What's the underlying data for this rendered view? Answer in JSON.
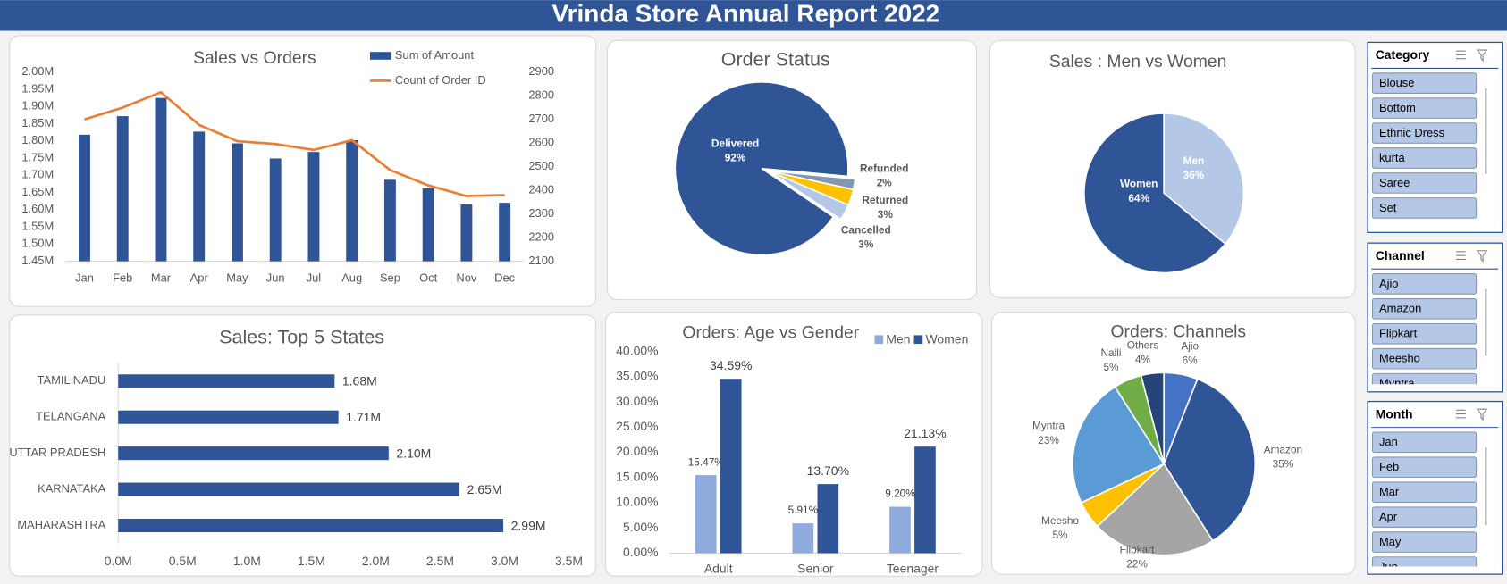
{
  "header": {
    "title": "Vrinda Store Annual Report 2022"
  },
  "chart_data": [
    {
      "type": "combo",
      "title": "Sales vs Orders",
      "categories": [
        "Jan",
        "Feb",
        "Mar",
        "Apr",
        "May",
        "Jun",
        "Jul",
        "Aug",
        "Sep",
        "Oct",
        "Nov",
        "Dec"
      ],
      "series": [
        {
          "name": "Sum of Amount",
          "color": "#2f5597",
          "type": "bar",
          "values": [
            1818000,
            1872000,
            1925000,
            1827000,
            1793000,
            1749000,
            1768000,
            1802000,
            1687000,
            1662000,
            1615000,
            1620000
          ]
        },
        {
          "name": "Count of Order ID",
          "color": "#ed7d31",
          "type": "line",
          "axis": "y2",
          "values": [
            2700,
            2750,
            2815,
            2677,
            2608,
            2596,
            2571,
            2612,
            2486,
            2421,
            2376,
            2380
          ]
        }
      ],
      "ylim": [
        1450000,
        2000000
      ],
      "yticks": [
        {
          "value": 1450000,
          "label": "1.45M"
        },
        {
          "value": 1500000,
          "label": "1.50M"
        },
        {
          "value": 1550000,
          "label": "1.55M"
        },
        {
          "value": 1600000,
          "label": "1.60M"
        },
        {
          "value": 1650000,
          "label": "1.65M"
        },
        {
          "value": 1700000,
          "label": "1.70M"
        },
        {
          "value": 1750000,
          "label": "1.75M"
        },
        {
          "value": 1800000,
          "label": "1.80M"
        },
        {
          "value": 1850000,
          "label": "1.85M"
        },
        {
          "value": 1900000,
          "label": "1.90M"
        },
        {
          "value": 1950000,
          "label": "1.95M"
        },
        {
          "value": 2000000,
          "label": "2.00M"
        }
      ],
      "y2lim": [
        2100,
        2900
      ],
      "y2ticks": [
        2100,
        2200,
        2300,
        2400,
        2500,
        2600,
        2700,
        2800,
        2900
      ],
      "legend": "top-right"
    },
    {
      "type": "pie",
      "title": "Order Status",
      "categories": [
        "Delivered",
        "Refunded",
        "Returned",
        "Cancelled"
      ],
      "values": [
        92,
        2,
        3,
        3
      ],
      "value_labels": [
        "92%",
        "2%",
        "3%",
        "3%"
      ],
      "colors": [
        "#2f5597",
        "#8497b0",
        "#ffc000",
        "#b4c7e7"
      ]
    },
    {
      "type": "pie",
      "title": "Sales : Men vs Women",
      "categories": [
        "Men",
        "Women"
      ],
      "values": [
        36,
        64
      ],
      "value_labels": [
        "36%",
        "64%"
      ],
      "colors": [
        "#b4c7e7",
        "#2f5597"
      ]
    },
    {
      "type": "bar",
      "orientation": "horizontal",
      "title": "Sales: Top 5 States",
      "categories": [
        "TAMIL NADU",
        "TELANGANA",
        "UTTAR PRADESH",
        "KARNATAKA",
        "MAHARASHTRA"
      ],
      "values": [
        1680000,
        1710000,
        2100000,
        2650000,
        2990000
      ],
      "value_labels": [
        "1.68M",
        "1.71M",
        "2.10M",
        "2.65M",
        "2.99M"
      ],
      "color": "#2f5597",
      "xlim": [
        0,
        3500000
      ],
      "xticks": [
        {
          "value": 0,
          "label": "0.0M"
        },
        {
          "value": 500000,
          "label": "0.5M"
        },
        {
          "value": 1000000,
          "label": "1.0M"
        },
        {
          "value": 1500000,
          "label": "1.5M"
        },
        {
          "value": 2000000,
          "label": "2.0M"
        },
        {
          "value": 2500000,
          "label": "2.5M"
        },
        {
          "value": 3000000,
          "label": "3.0M"
        },
        {
          "value": 3500000,
          "label": "3.5M"
        }
      ]
    },
    {
      "type": "bar",
      "title": "Orders: Age vs Gender",
      "categories": [
        "Adult",
        "Senior",
        "Teenager"
      ],
      "series": [
        {
          "name": "Men",
          "color": "#8faadc",
          "values": [
            15.47,
            5.91,
            9.2
          ],
          "value_labels": [
            "15.47%",
            "5.91%",
            "9.20%"
          ]
        },
        {
          "name": "Women",
          "color": "#2f5597",
          "values": [
            34.59,
            13.7,
            21.13
          ],
          "value_labels": [
            "34.59%",
            "13.70%",
            "21.13%"
          ]
        }
      ],
      "ylim": [
        0,
        40
      ],
      "yticks": [
        {
          "value": 0,
          "label": "0.00%"
        },
        {
          "value": 5,
          "label": "5.00%"
        },
        {
          "value": 10,
          "label": "10.00%"
        },
        {
          "value": 15,
          "label": "15.00%"
        },
        {
          "value": 20,
          "label": "20.00%"
        },
        {
          "value": 25,
          "label": "25.00%"
        },
        {
          "value": 30,
          "label": "30.00%"
        },
        {
          "value": 35,
          "label": "35.00%"
        },
        {
          "value": 40,
          "label": "40.00%"
        }
      ],
      "legend": "top-right"
    },
    {
      "type": "pie",
      "title": "Orders: Channels",
      "categories": [
        "Ajio",
        "Amazon",
        "Flipkart",
        "Meesho",
        "Myntra",
        "Nalli",
        "Others"
      ],
      "values": [
        6,
        35,
        22,
        5,
        23,
        5,
        4
      ],
      "value_labels": [
        "6%",
        "35%",
        "22%",
        "5%",
        "23%",
        "5%",
        "4%"
      ],
      "colors": [
        "#4472c4",
        "#2f5597",
        "#a5a5a5",
        "#ffc000",
        "#5b9bd5",
        "#70ad47",
        "#264478"
      ]
    }
  ],
  "slicers": [
    {
      "title": "Category",
      "items": [
        "Blouse",
        "Bottom",
        "Ethnic Dress",
        "kurta",
        "Saree",
        "Set"
      ]
    },
    {
      "title": "Channel",
      "items": [
        "Ajio",
        "Amazon",
        "Flipkart",
        "Meesho",
        "Myntra"
      ]
    },
    {
      "title": "Month",
      "items": [
        "Jan",
        "Feb",
        "Mar",
        "Apr",
        "May",
        "Jun"
      ]
    }
  ]
}
